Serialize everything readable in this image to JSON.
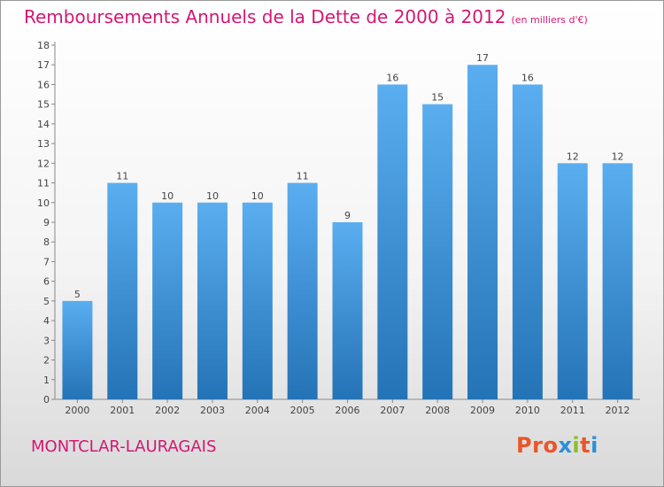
{
  "title": "Remboursements Annuels de la Dette de 2000 à 2012",
  "unit": "(en milliers d'€)",
  "place": "MONTCLAR-LAURAGAIS",
  "logo": {
    "text": "Proxiti",
    "letter_colors": [
      "#e8562a",
      "#e8562a",
      "#e8562a",
      "#2a8fd8",
      "#8bbf2a",
      "#e8562a",
      "#2a8fd8"
    ]
  },
  "colors": {
    "title": "#d21873",
    "bar_light": "#5aaef0",
    "bar_dark": "#2473b6"
  },
  "chart_data": {
    "type": "bar",
    "title": "Remboursements Annuels de la Dette de 2000 à 2012",
    "categories": [
      "2000",
      "2001",
      "2002",
      "2003",
      "2004",
      "2005",
      "2006",
      "2007",
      "2008",
      "2009",
      "2010",
      "2011",
      "2012"
    ],
    "values": [
      5,
      11,
      10,
      10,
      10,
      11,
      9,
      16,
      15,
      17,
      16,
      12,
      12
    ],
    "ylim": [
      0,
      18
    ],
    "yticks": [
      0,
      1,
      2,
      3,
      4,
      5,
      6,
      7,
      8,
      9,
      10,
      11,
      12,
      13,
      14,
      15,
      16,
      17,
      18
    ],
    "grid": false,
    "data_labels": true
  }
}
